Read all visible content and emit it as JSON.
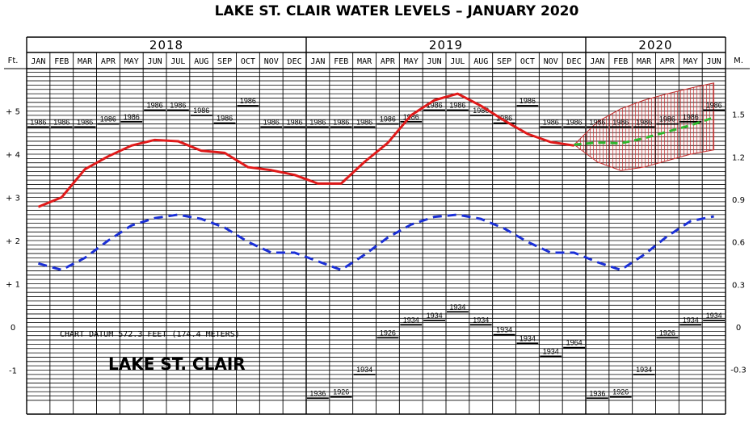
{
  "title": "LAKE ST. CLAIR WATER LEVELS – JANUARY 2020",
  "lake_name": "LAKE ST. CLAIR",
  "datum_note": "CHART DATUM 572.3 FEET (174.4 METERS)",
  "axes": {
    "left_unit": "Ft.",
    "right_unit": "M.",
    "feet_ticks": [
      {
        "value": 5,
        "label": "+ 5"
      },
      {
        "value": 4,
        "label": "+ 4"
      },
      {
        "value": 3,
        "label": "+ 3"
      },
      {
        "value": 2,
        "label": "+ 2"
      },
      {
        "value": 1,
        "label": "+ 1"
      },
      {
        "value": 0,
        "label": "0"
      },
      {
        "value": -1,
        "label": "-1"
      }
    ],
    "meter_ticks": [
      {
        "value": 1.5,
        "label": "1.5"
      },
      {
        "value": 1.2,
        "label": "1.2"
      },
      {
        "value": 0.9,
        "label": "0.9"
      },
      {
        "value": 0.6,
        "label": "0.6"
      },
      {
        "value": 0.3,
        "label": "0.3"
      },
      {
        "value": 0,
        "label": "0"
      },
      {
        "value": -0.3,
        "label": "-0.3"
      }
    ]
  },
  "years": [
    "2018",
    "2019",
    "2020"
  ],
  "months": [
    "JAN",
    "FEB",
    "MAR",
    "APR",
    "MAY",
    "JUN",
    "JUL",
    "AUG",
    "SEP",
    "OCT",
    "NOV",
    "DEC",
    "JAN",
    "FEB",
    "MAR",
    "APR",
    "MAY",
    "JUN",
    "JUL",
    "AUG",
    "SEP",
    "OCT",
    "NOV",
    "DEC",
    "JAN",
    "FEB",
    "MAR",
    "APR",
    "MAY",
    "JUN"
  ],
  "colors": {
    "recorded": "#e01a1a",
    "average": "#1a2fd6",
    "forecast": "#2fb82f",
    "forecast_band": "#c43030",
    "grid": "#000000"
  },
  "chart_data": {
    "type": "line",
    "ylabel": "Ft.",
    "ylim": [
      -1.75,
      6.3
    ],
    "x": [
      "JAN 2018",
      "FEB 2018",
      "MAR 2018",
      "APR 2018",
      "MAY 2018",
      "JUN 2018",
      "JUL 2018",
      "AUG 2018",
      "SEP 2018",
      "OCT 2018",
      "NOV 2018",
      "DEC 2018",
      "JAN 2019",
      "FEB 2019",
      "MAR 2019",
      "APR 2019",
      "MAY 2019",
      "JUN 2019",
      "JUL 2019",
      "AUG 2019",
      "SEP 2019",
      "OCT 2019",
      "NOV 2019",
      "DEC 2019",
      "JAN 2020",
      "FEB 2020",
      "MAR 2020",
      "APR 2020",
      "MAY 2020",
      "JUN 2020"
    ],
    "recorded": [
      2.78,
      3.0,
      3.65,
      3.95,
      4.2,
      4.33,
      4.3,
      4.08,
      4.03,
      3.7,
      3.63,
      3.52,
      3.32,
      3.32,
      3.82,
      4.26,
      4.9,
      5.25,
      5.4,
      5.12,
      4.78,
      4.47,
      4.28,
      4.2
    ],
    "average": [
      1.47,
      1.32,
      1.6,
      2.0,
      2.35,
      2.52,
      2.6,
      2.5,
      2.3,
      1.97,
      1.72,
      1.72,
      1.52,
      1.32,
      1.67,
      2.07,
      2.37,
      2.55,
      2.6,
      2.5,
      2.28,
      1.97,
      1.72,
      1.72,
      1.5,
      1.32,
      1.67,
      2.1,
      2.45,
      2.56
    ],
    "forecast": {
      "x_start_index": 23,
      "values": [
        4.22,
        4.27,
        4.25,
        4.37,
        4.52,
        4.67,
        4.85
      ],
      "upper": [
        4.22,
        4.75,
        5.05,
        5.25,
        5.4,
        5.53,
        5.65
      ],
      "lower": [
        4.22,
        3.82,
        3.62,
        3.7,
        3.85,
        4.0,
        4.1
      ]
    },
    "record_highs": [
      {
        "value": 4.63,
        "year": "1986"
      },
      {
        "value": 4.63,
        "year": "1986"
      },
      {
        "value": 4.63,
        "year": "1986"
      },
      {
        "value": 4.7,
        "year": "1986"
      },
      {
        "value": 4.75,
        "year": "1986"
      },
      {
        "value": 5.02,
        "year": "1986"
      },
      {
        "value": 5.02,
        "year": "1986"
      },
      {
        "value": 4.9,
        "year": "1986"
      },
      {
        "value": 4.72,
        "year": "1986"
      },
      {
        "value": 5.12,
        "year": "1986"
      },
      {
        "value": 4.63,
        "year": "1986"
      },
      {
        "value": 4.63,
        "year": "1986"
      },
      {
        "value": 4.63,
        "year": "1986"
      },
      {
        "value": 4.63,
        "year": "1986"
      },
      {
        "value": 4.63,
        "year": "1986"
      },
      {
        "value": 4.7,
        "year": "1986"
      },
      {
        "value": 4.75,
        "year": "1986"
      },
      {
        "value": 5.02,
        "year": "1986"
      },
      {
        "value": 5.02,
        "year": "1986"
      },
      {
        "value": 4.9,
        "year": "1986"
      },
      {
        "value": 4.72,
        "year": "1986"
      },
      {
        "value": 5.12,
        "year": "1986"
      },
      {
        "value": 4.63,
        "year": "1986"
      },
      {
        "value": 4.63,
        "year": "1986"
      },
      {
        "value": 4.63,
        "year": "1986"
      },
      {
        "value": 4.63,
        "year": "1986"
      },
      {
        "value": 4.63,
        "year": "1986"
      },
      {
        "value": 4.7,
        "year": "1986"
      },
      {
        "value": 4.75,
        "year": "1986"
      },
      {
        "value": 5.02,
        "year": "1986"
      }
    ],
    "record_lows": [
      null,
      null,
      null,
      null,
      null,
      null,
      null,
      null,
      null,
      null,
      null,
      null,
      {
        "value": -1.65,
        "year": "1936"
      },
      {
        "value": -1.62,
        "year": "1926"
      },
      {
        "value": -1.1,
        "year": "1934"
      },
      {
        "value": -0.25,
        "year": "1926"
      },
      {
        "value": 0.05,
        "year": "1934"
      },
      {
        "value": 0.15,
        "year": "1934"
      },
      {
        "value": 0.35,
        "year": "1934"
      },
      {
        "value": 0.05,
        "year": "1934"
      },
      {
        "value": -0.18,
        "year": "1934"
      },
      {
        "value": -0.38,
        "year": "1934"
      },
      {
        "value": -0.68,
        "year": "1934"
      },
      {
        "value": -0.48,
        "year": "1964"
      },
      {
        "value": -1.65,
        "year": "1936"
      },
      {
        "value": -1.62,
        "year": "1926"
      },
      {
        "value": -1.1,
        "year": "1934"
      },
      {
        "value": -0.25,
        "year": "1926"
      },
      {
        "value": 0.05,
        "year": "1934"
      },
      {
        "value": 0.15,
        "year": "1934"
      }
    ]
  }
}
